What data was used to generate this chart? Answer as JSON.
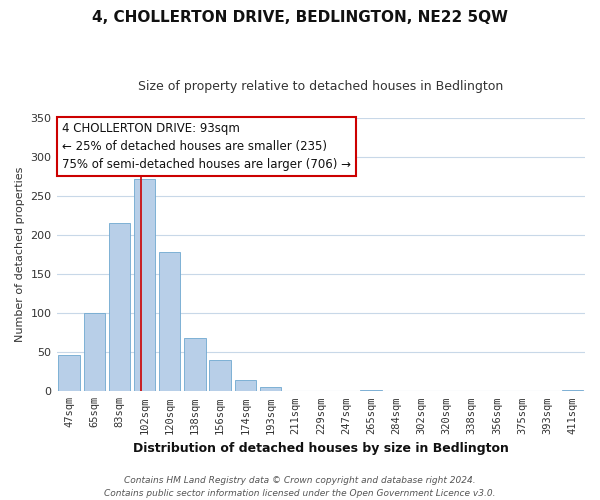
{
  "title": "4, CHOLLERTON DRIVE, BEDLINGTON, NE22 5QW",
  "subtitle": "Size of property relative to detached houses in Bedlington",
  "xlabel": "Distribution of detached houses by size in Bedlington",
  "ylabel": "Number of detached properties",
  "bar_labels": [
    "47sqm",
    "65sqm",
    "83sqm",
    "102sqm",
    "120sqm",
    "138sqm",
    "156sqm",
    "174sqm",
    "193sqm",
    "211sqm",
    "229sqm",
    "247sqm",
    "265sqm",
    "284sqm",
    "302sqm",
    "320sqm",
    "338sqm",
    "356sqm",
    "375sqm",
    "393sqm",
    "411sqm"
  ],
  "bar_values": [
    47,
    100,
    215,
    272,
    178,
    68,
    40,
    14,
    6,
    0,
    0,
    0,
    2,
    1,
    0,
    0,
    0,
    0,
    0,
    0,
    2
  ],
  "bar_color": "#b8cfe8",
  "bar_edge_color": "#6fa8d0",
  "vline_color": "#cc0000",
  "vline_x": 2.85,
  "ylim": [
    0,
    350
  ],
  "yticks": [
    0,
    50,
    100,
    150,
    200,
    250,
    300,
    350
  ],
  "annotation_title": "4 CHOLLERTON DRIVE: 93sqm",
  "annotation_line1": "← 25% of detached houses are smaller (235)",
  "annotation_line2": "75% of semi-detached houses are larger (706) →",
  "annotation_box_color": "#ffffff",
  "annotation_box_edge": "#cc0000",
  "footer1": "Contains HM Land Registry data © Crown copyright and database right 2024.",
  "footer2": "Contains public sector information licensed under the Open Government Licence v3.0.",
  "background_color": "#ffffff",
  "grid_color": "#c8d8e8",
  "title_fontsize": 11,
  "subtitle_fontsize": 9,
  "xlabel_fontsize": 9,
  "ylabel_fontsize": 8,
  "tick_fontsize": 7.5
}
